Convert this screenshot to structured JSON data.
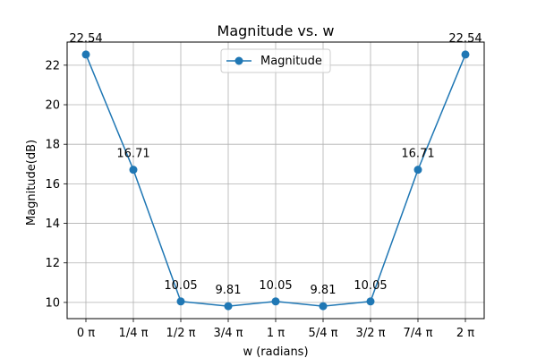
{
  "chart_data": {
    "type": "line",
    "title": "Magnitude vs. w",
    "xlabel": "w (radians)",
    "ylabel": "Magnitude(dB)",
    "categories": [
      "0 π",
      "1/4 π",
      "1/2 π",
      "3/4 π",
      "1 π",
      "5/4 π",
      "3/2 π",
      "7/4 π",
      "2 π"
    ],
    "series": [
      {
        "name": "Magnitude",
        "values": [
          22.54,
          16.71,
          10.05,
          9.81,
          10.05,
          9.81,
          10.05,
          16.71,
          22.54
        ],
        "labels": [
          "22.54",
          "16.71",
          "10.05",
          "9.81",
          "10.05",
          "9.81",
          "10.05",
          "16.71",
          "22.54"
        ],
        "color": "#1f77b4",
        "marker": "circle"
      }
    ],
    "yticks": [
      "10",
      "12",
      "14",
      "16",
      "18",
      "20",
      "22"
    ],
    "ylim": [
      9.18,
      23.17
    ],
    "grid": true,
    "legend": "upper-center"
  }
}
